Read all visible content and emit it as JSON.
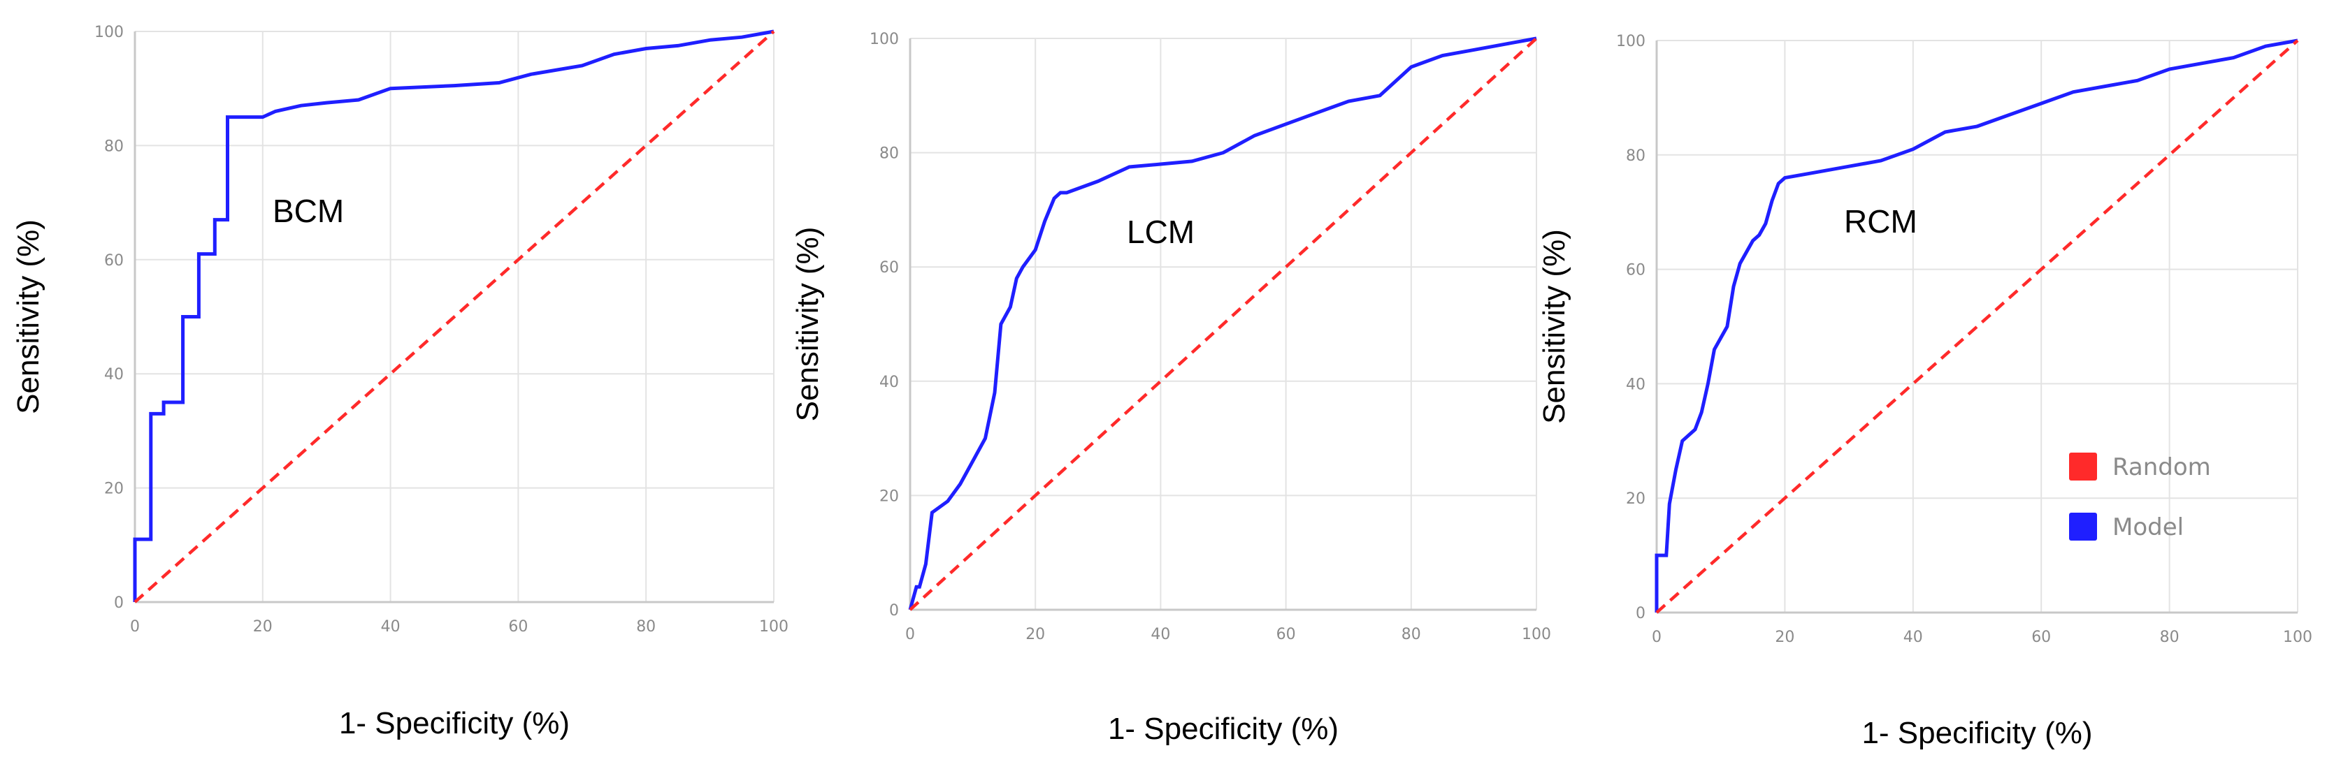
{
  "colors": {
    "model": "#1f1fff",
    "random": "#ff2a2a",
    "grid": "#e3e3e3",
    "axis": "#c8c8c8",
    "tick_text": "#8a8a8a"
  },
  "legend": {
    "items": [
      {
        "label": "Random",
        "color": "#ff2a2a"
      },
      {
        "label": "Model",
        "color": "#1f1fff"
      }
    ]
  },
  "chart_data": [
    {
      "type": "line",
      "annotation": "BCM",
      "xlabel": "1- Specificity (%)",
      "ylabel": "Sensitivity (%)",
      "xlim": [
        0,
        100
      ],
      "ylim": [
        0,
        100
      ],
      "xticks": [
        "0",
        "20",
        "40",
        "60",
        "80",
        "100"
      ],
      "yticks": [
        "0",
        "20",
        "40",
        "60",
        "80",
        "100"
      ],
      "grid": true,
      "series": [
        {
          "role": "model",
          "x": [
            0,
            0,
            2.5,
            2.5,
            4.5,
            4.5,
            7.5,
            7.5,
            10,
            10,
            12.5,
            12.5,
            14.5,
            14.5,
            20,
            22,
            26,
            30,
            35,
            40,
            50,
            57,
            62,
            70,
            75,
            80,
            85,
            90,
            95,
            100
          ],
          "y": [
            0,
            11,
            11,
            33,
            33,
            35,
            35,
            50,
            50,
            61,
            61,
            67,
            67,
            85,
            85,
            86,
            87,
            87.5,
            88,
            90,
            90.5,
            91,
            92.5,
            94,
            96,
            97,
            97.5,
            98.5,
            99,
            100
          ]
        },
        {
          "role": "random",
          "x": [
            0,
            100
          ],
          "y": [
            0,
            100
          ]
        }
      ]
    },
    {
      "type": "line",
      "annotation": "LCM",
      "xlabel": "1- Specificity (%)",
      "ylabel": "Sensitivity (%)",
      "xlim": [
        0,
        100
      ],
      "ylim": [
        0,
        100
      ],
      "xticks": [
        "0",
        "20",
        "40",
        "60",
        "80",
        "100"
      ],
      "yticks": [
        "0",
        "20",
        "40",
        "60",
        "80",
        "100"
      ],
      "grid": true,
      "series": [
        {
          "role": "model",
          "x": [
            0,
            1,
            1.5,
            2.5,
            3.5,
            6,
            8,
            10,
            12,
            13.5,
            14.5,
            16,
            17,
            18,
            20,
            21.5,
            23,
            24,
            25,
            30,
            35,
            40,
            45,
            50,
            55,
            60,
            65,
            70,
            75,
            80,
            85,
            90,
            95,
            100
          ],
          "y": [
            0,
            4,
            4,
            8,
            17,
            19,
            22,
            26,
            30,
            38,
            50,
            53,
            58,
            60,
            63,
            68,
            72,
            73,
            73,
            75,
            77.5,
            78,
            78.5,
            80,
            83,
            85,
            87,
            89,
            90,
            95,
            97,
            98,
            99,
            100
          ]
        },
        {
          "role": "random",
          "x": [
            0,
            100
          ],
          "y": [
            0,
            100
          ]
        }
      ]
    },
    {
      "type": "line",
      "annotation": "RCM",
      "xlabel": "1- Specificity (%)",
      "ylabel": "Sensitivity (%)",
      "xlim": [
        0,
        100
      ],
      "ylim": [
        0,
        100
      ],
      "xticks": [
        "0",
        "20",
        "40",
        "60",
        "80",
        "100"
      ],
      "yticks": [
        "0",
        "20",
        "40",
        "60",
        "80",
        "100"
      ],
      "grid": true,
      "legend": "right",
      "series": [
        {
          "role": "model",
          "x": [
            0,
            0,
            1.5,
            2,
            3,
            4,
            5,
            6,
            7,
            8,
            9,
            10,
            11,
            12,
            13,
            14,
            15,
            16,
            17,
            18,
            19,
            20,
            25,
            30,
            35,
            40,
            45,
            50,
            55,
            60,
            65,
            70,
            75,
            80,
            85,
            90,
            95,
            100
          ],
          "y": [
            0,
            10,
            10,
            19,
            25,
            30,
            31,
            32,
            35,
            40,
            46,
            48,
            50,
            57,
            61,
            63,
            65,
            66,
            68,
            72,
            75,
            76,
            77,
            78,
            79,
            81,
            84,
            85,
            87,
            89,
            91,
            92,
            93,
            95,
            96,
            97,
            99,
            100
          ]
        },
        {
          "role": "random",
          "x": [
            0,
            100
          ],
          "y": [
            0,
            100
          ]
        }
      ]
    }
  ]
}
